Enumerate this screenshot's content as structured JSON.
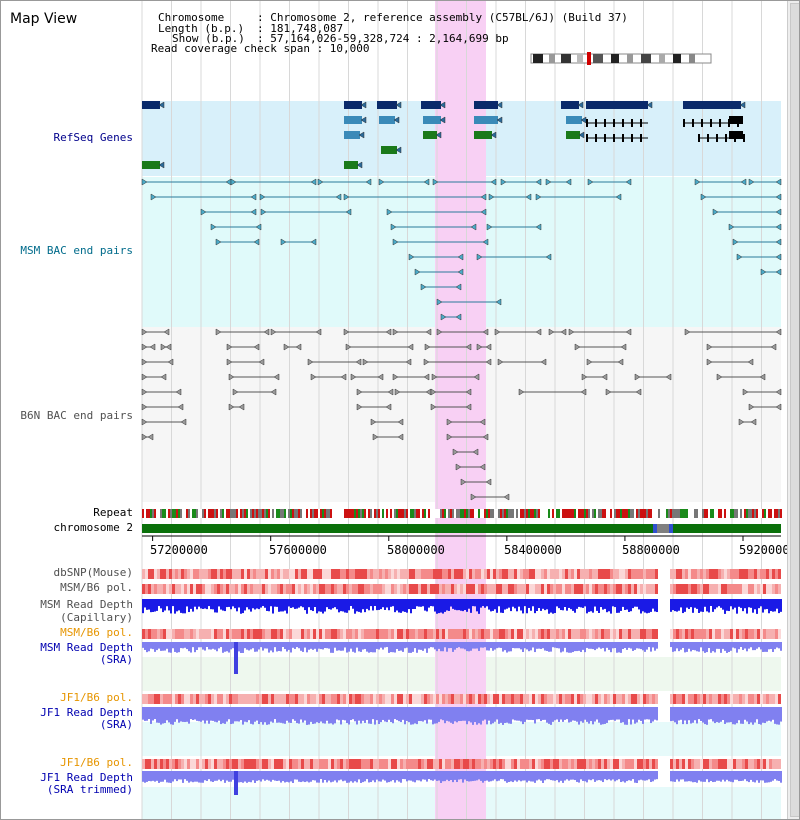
{
  "title": "Map View",
  "header": {
    "line1_key": "Chromosome",
    "line1_val": ": Chromosome 2, reference assembly (C57BL/6J) (Build 37)",
    "line2_key": "Length (b.p.)",
    "line2_val": ": 181,748,087",
    "line3_key": "Show (b.p.)",
    "line3_val": ": 57,164,026-59,328,724 : 2,164,699 bp",
    "line4": "Read coverage check span : 10,000"
  },
  "tracks": {
    "refseq": "RefSeq Genes",
    "msm_bac": "MSM BAC end pairs",
    "b6n_bac": "B6N BAC end pairs",
    "repeat": "Repeat",
    "chromosome": "chromosome 2",
    "dbsnp": "dbSNP(Mouse)",
    "msm_pol": "MSM/B6 pol.",
    "msm_depth_cap_1": "MSM Read Depth",
    "msm_depth_cap_2": "(Capillary)",
    "msm_pol2": "MSM/B6 pol.",
    "msm_depth_sra_1": "MSM Read Depth",
    "msm_depth_sra_2": "(SRA)",
    "jf1_pol": "JF1/B6 pol.",
    "jf1_depth_sra_1": "JF1 Read Depth",
    "jf1_depth_sra_2": "(SRA)",
    "jf1_pol2": "JF1/B6 pol.",
    "jf1_depth_trim_1": "JF1 Read Depth",
    "jf1_depth_trim_2": "(SRA trimmed)"
  },
  "axis": {
    "ticks": [
      "57200000",
      "57600000",
      "58000000",
      "58400000",
      "58800000",
      "59200000"
    ],
    "tick_values": [
      57200000,
      57600000,
      58000000,
      58400000,
      58800000,
      59200000
    ],
    "range": [
      57164026,
      59328724
    ]
  },
  "colors": {
    "refseq_label": "#00008b",
    "msm_label": "#006b8b",
    "b6n_label": "#505050",
    "orange_label": "#e69500",
    "blue_label": "#0000b0",
    "highlight": "#f8d0f4",
    "gene_dark": "#0a2a6a",
    "gene_mid": "#3a8ab8",
    "gene_green": "#1a7a1a",
    "msm_feature": "#2a7a9a",
    "b6n_feature": "#7a7a7a",
    "chrom_green": "#0a700a",
    "depth_blue": "#1a1ae6",
    "depth_sra": "#8080f0"
  }
}
